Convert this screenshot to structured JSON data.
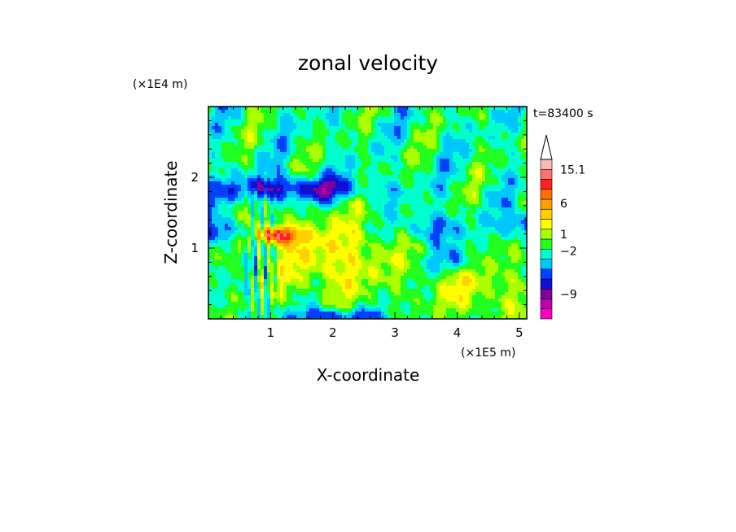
{
  "chart_data": {
    "type": "heatmap",
    "title": "zonal velocity",
    "xlabel": "X-coordinate",
    "ylabel": "Z-coordinate",
    "x_scale_label": "(×1E5 m)",
    "y_scale_label": "(×1E4 m)",
    "time_label": "t=83400 s",
    "xlim": [
      0,
      5.12
    ],
    "ylim": [
      0,
      3.0
    ],
    "x_ticks": [
      "1",
      "2",
      "3",
      "4",
      "5"
    ],
    "y_ticks": [
      "1",
      "2"
    ],
    "colorbar": {
      "labels": [
        "15.1",
        "6",
        "1",
        "−2",
        "−9"
      ],
      "levels": [
        {
          "color": "#ff00c0"
        },
        {
          "color": "#c000b0"
        },
        {
          "color": "#8000a0"
        },
        {
          "color": "#1010d0"
        },
        {
          "color": "#0040ff"
        },
        {
          "color": "#00c8ff"
        },
        {
          "color": "#00ffcc"
        },
        {
          "color": "#20ff20"
        },
        {
          "color": "#aaff00"
        },
        {
          "color": "#ffff00"
        },
        {
          "color": "#ffd000"
        },
        {
          "color": "#ffa000"
        },
        {
          "color": "#ff7000"
        },
        {
          "color": "#ff2020"
        },
        {
          "color": "#ff7070"
        },
        {
          "color": "#ffb8b8"
        }
      ],
      "extend_max": true
    }
  }
}
